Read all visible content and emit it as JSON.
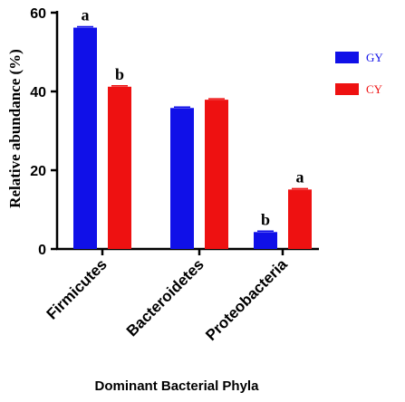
{
  "chart_data": {
    "type": "bar",
    "title": "",
    "xlabel": "Dominant Bacterial Phyla",
    "ylabel": "Relative abundance (%)",
    "ylim": [
      0,
      60
    ],
    "yticks": [
      "0",
      "20",
      "40",
      "60"
    ],
    "categories": [
      "Firmicutes",
      "Bacteroidetes",
      "Proteobacteria"
    ],
    "series": [
      {
        "name": "GY",
        "color": "#1010e8",
        "values": [
          56.2,
          35.8,
          4.3
        ],
        "letters": [
          "a",
          "",
          "b"
        ]
      },
      {
        "name": "CY",
        "color": "#ee1111",
        "values": [
          41.2,
          37.9,
          15.1
        ],
        "letters": [
          "b",
          "",
          "a"
        ]
      }
    ],
    "legend_position": "right",
    "grid": false
  }
}
